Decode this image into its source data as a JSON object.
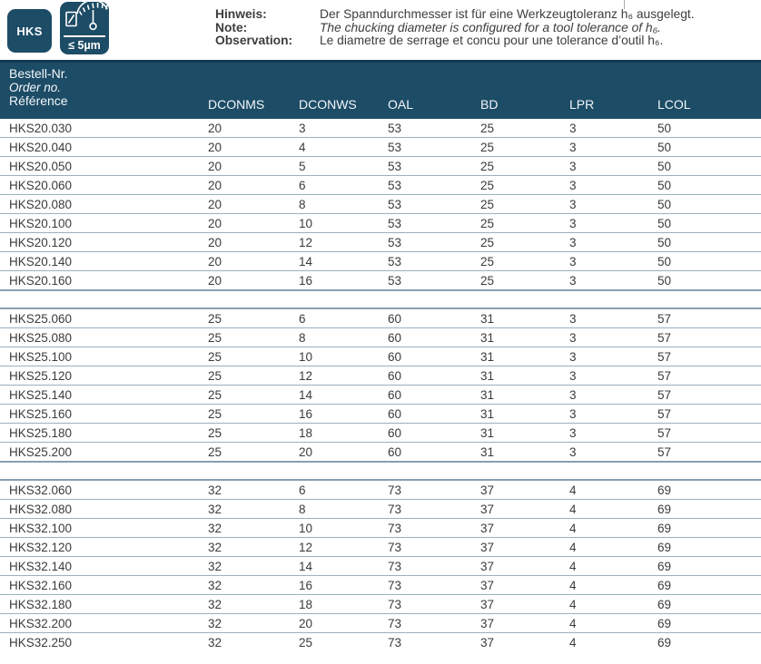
{
  "badges": {
    "product_series": "HKS",
    "runout_spec": "≤ 5µm"
  },
  "note": {
    "rows": [
      {
        "label": "Hinweis:",
        "text": "Der Spanndurchmesser ist für eine Werkzeugtoleranz h₆ ausgelegt."
      },
      {
        "label": "Note:",
        "text": "The chucking diameter is configured for a tool tolerance of h₆."
      },
      {
        "label": "Observation:",
        "text": "Le diametre de serrage et concu pour une tolerance d’outil h₆."
      }
    ]
  },
  "table": {
    "order_col_header": [
      "Bestell-Nr.",
      "Order no.",
      "Référence"
    ],
    "columns": [
      "DCONMS",
      "DCONWS",
      "OAL",
      "BD",
      "LPR",
      "LCOL"
    ],
    "sections": [
      {
        "rows": [
          [
            "HKS20.030",
            "20",
            "3",
            "53",
            "25",
            "3",
            "50"
          ],
          [
            "HKS20.040",
            "20",
            "4",
            "53",
            "25",
            "3",
            "50"
          ],
          [
            "HKS20.050",
            "20",
            "5",
            "53",
            "25",
            "3",
            "50"
          ],
          [
            "HKS20.060",
            "20",
            "6",
            "53",
            "25",
            "3",
            "50"
          ],
          [
            "HKS20.080",
            "20",
            "8",
            "53",
            "25",
            "3",
            "50"
          ],
          [
            "HKS20.100",
            "20",
            "10",
            "53",
            "25",
            "3",
            "50"
          ],
          [
            "HKS20.120",
            "20",
            "12",
            "53",
            "25",
            "3",
            "50"
          ],
          [
            "HKS20.140",
            "20",
            "14",
            "53",
            "25",
            "3",
            "50"
          ],
          [
            "HKS20.160",
            "20",
            "16",
            "53",
            "25",
            "3",
            "50"
          ]
        ]
      },
      {
        "rows": [
          [
            "HKS25.060",
            "25",
            "6",
            "60",
            "31",
            "3",
            "57"
          ],
          [
            "HKS25.080",
            "25",
            "8",
            "60",
            "31",
            "3",
            "57"
          ],
          [
            "HKS25.100",
            "25",
            "10",
            "60",
            "31",
            "3",
            "57"
          ],
          [
            "HKS25.120",
            "25",
            "12",
            "60",
            "31",
            "3",
            "57"
          ],
          [
            "HKS25.140",
            "25",
            "14",
            "60",
            "31",
            "3",
            "57"
          ],
          [
            "HKS25.160",
            "25",
            "16",
            "60",
            "31",
            "3",
            "57"
          ],
          [
            "HKS25.180",
            "25",
            "18",
            "60",
            "31",
            "3",
            "57"
          ],
          [
            "HKS25.200",
            "25",
            "20",
            "60",
            "31",
            "3",
            "57"
          ]
        ]
      },
      {
        "rows": [
          [
            "HKS32.060",
            "32",
            "6",
            "73",
            "37",
            "4",
            "69"
          ],
          [
            "HKS32.080",
            "32",
            "8",
            "73",
            "37",
            "4",
            "69"
          ],
          [
            "HKS32.100",
            "32",
            "10",
            "73",
            "37",
            "4",
            "69"
          ],
          [
            "HKS32.120",
            "32",
            "12",
            "73",
            "37",
            "4",
            "69"
          ],
          [
            "HKS32.140",
            "32",
            "14",
            "73",
            "37",
            "4",
            "69"
          ],
          [
            "HKS32.160",
            "32",
            "16",
            "73",
            "37",
            "4",
            "69"
          ],
          [
            "HKS32.180",
            "32",
            "18",
            "73",
            "37",
            "4",
            "69"
          ],
          [
            "HKS32.200",
            "32",
            "20",
            "73",
            "37",
            "4",
            "69"
          ],
          [
            "HKS32.250",
            "32",
            "25",
            "73",
            "37",
            "4",
            "69"
          ]
        ]
      }
    ]
  },
  "colors": {
    "brand_blue": "#1d4c66",
    "header_top_border": "#133a50",
    "row_separator": "#9ab0bf",
    "section_separator": "#85a0b2",
    "body_text": "#3b3b3b"
  }
}
